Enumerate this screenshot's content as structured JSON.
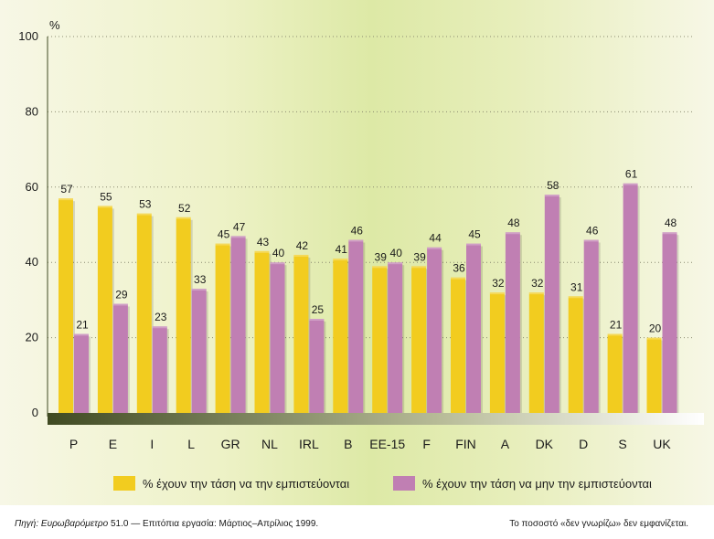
{
  "colors": {
    "series1": "#f2cc1f",
    "series2": "#c07fb3",
    "axis_gradient_start": "#3f4a22",
    "axis_gradient_end": "#ffffff",
    "grid": "#8a8a70"
  },
  "chart_data": {
    "type": "bar",
    "y_unit_label": "%",
    "ylim": [
      0,
      100
    ],
    "yticks": [
      0,
      20,
      40,
      60,
      80,
      100
    ],
    "grid": "dotted horizontal",
    "categories": [
      "P",
      "E",
      "I",
      "L",
      "GR",
      "NL",
      "IRL",
      "B",
      "EE-15",
      "F",
      "FIN",
      "A",
      "DK",
      "D",
      "S",
      "UK"
    ],
    "series": [
      {
        "name": "% έχουν την τάση να την εμπιστεύονται",
        "values": [
          57,
          55,
          53,
          52,
          45,
          43,
          42,
          41,
          39,
          39,
          36,
          32,
          32,
          31,
          21,
          20
        ]
      },
      {
        "name": "% έχουν την τάση να μην την εμπιστεύονται",
        "values": [
          21,
          29,
          23,
          33,
          47,
          40,
          25,
          46,
          40,
          44,
          45,
          48,
          58,
          46,
          61,
          48
        ]
      }
    ],
    "legend_position": "bottom"
  },
  "footer": {
    "source_label": "Πηγή: Ευρωβαρόμετρο",
    "source_rest": " 51.0 — Επιτόπια εργασία: Μάρτιος–Απρίλιος 1999.",
    "note": "Το ποσοστό «δεν γνωρίζω» δεν εμφανίζεται."
  }
}
